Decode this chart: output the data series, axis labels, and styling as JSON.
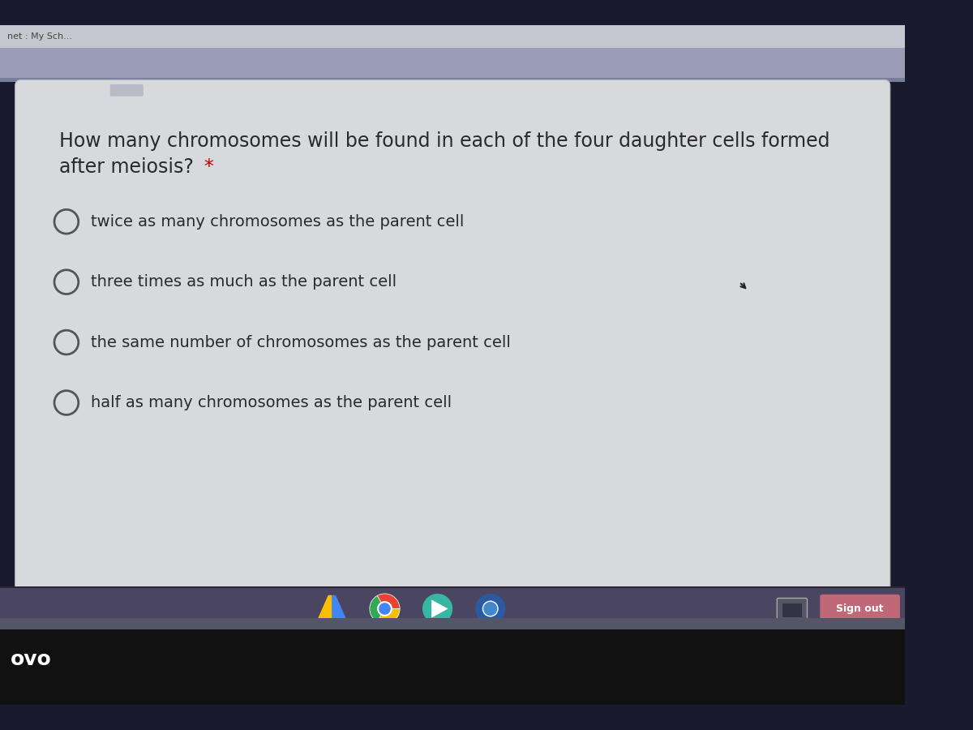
{
  "bg_main_color": "#1a1a2e",
  "card_bg_color": "#d8d9dd",
  "tab_bar_color": "#c5c7d0",
  "addr_bar_color": "#9a9db5",
  "browser_tab_text": "net : My Sch...",
  "question_line1": "How many chromosomes will be found in each of the four daughter cells formed",
  "question_line2": "after meiosis? ",
  "question_asterisk": "*",
  "options": [
    "twice as many chromosomes as the parent cell",
    "three times as much as the parent cell",
    "the same number of chromosomes as the parent cell",
    "half as many chromosomes as the parent cell"
  ],
  "taskbar_color": "#4a4560",
  "dark_bar_color": "#111111",
  "ovo_text": "ovo",
  "sign_out_text": "Sign out",
  "sign_out_bg": "#c06878",
  "question_font_size": 17,
  "option_font_size": 14,
  "text_color": "#2a2a2a",
  "circle_edge_color": "#555555",
  "circle_face_color": "#d8d9dd",
  "tab_divider_color": "#aaaabc",
  "separator_color": "#8888a0"
}
